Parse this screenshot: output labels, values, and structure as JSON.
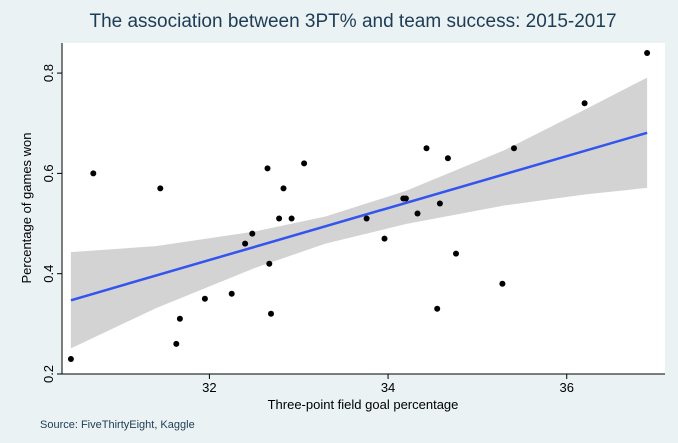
{
  "chart_data": {
    "type": "scatter",
    "title": "The association between 3PT% and team success: 2015-2017",
    "xlabel": "Three-point field goal percentage",
    "ylabel": "Percentage of games won",
    "source": "Source: FiveThirtyEight, Kaggle",
    "xlim": [
      30.35,
      37.1
    ],
    "ylim": [
      0.2,
      0.86
    ],
    "x_ticks": [
      32,
      34,
      36
    ],
    "y_ticks": [
      0.2,
      0.4,
      0.6,
      0.8
    ],
    "x_tick_labels": [
      "32",
      "34",
      "36"
    ],
    "y_tick_labels": [
      "0.2",
      "0.4",
      "0.6",
      "0.8"
    ],
    "points": [
      {
        "x": 30.45,
        "y": 0.23
      },
      {
        "x": 30.7,
        "y": 0.6
      },
      {
        "x": 31.45,
        "y": 0.57
      },
      {
        "x": 31.63,
        "y": 0.26
      },
      {
        "x": 31.67,
        "y": 0.31
      },
      {
        "x": 31.95,
        "y": 0.35
      },
      {
        "x": 32.25,
        "y": 0.36
      },
      {
        "x": 32.4,
        "y": 0.46
      },
      {
        "x": 32.48,
        "y": 0.48
      },
      {
        "x": 32.65,
        "y": 0.61
      },
      {
        "x": 32.67,
        "y": 0.42
      },
      {
        "x": 32.69,
        "y": 0.32
      },
      {
        "x": 32.78,
        "y": 0.51
      },
      {
        "x": 32.83,
        "y": 0.57
      },
      {
        "x": 32.92,
        "y": 0.51
      },
      {
        "x": 33.06,
        "y": 0.62
      },
      {
        "x": 33.76,
        "y": 0.51
      },
      {
        "x": 33.96,
        "y": 0.47
      },
      {
        "x": 34.17,
        "y": 0.55
      },
      {
        "x": 34.2,
        "y": 0.55
      },
      {
        "x": 34.33,
        "y": 0.52
      },
      {
        "x": 34.43,
        "y": 0.65
      },
      {
        "x": 34.55,
        "y": 0.33
      },
      {
        "x": 34.58,
        "y": 0.54
      },
      {
        "x": 34.67,
        "y": 0.63
      },
      {
        "x": 34.76,
        "y": 0.44
      },
      {
        "x": 35.28,
        "y": 0.38
      },
      {
        "x": 35.41,
        "y": 0.65
      },
      {
        "x": 36.2,
        "y": 0.74
      },
      {
        "x": 36.9,
        "y": 0.84
      }
    ],
    "fit_line": {
      "x": [
        30.45,
        36.9
      ],
      "y": [
        0.347,
        0.681
      ]
    },
    "confidence_band": {
      "x": [
        30.45,
        31.4,
        32.5,
        33.3,
        34.2,
        35.3,
        36.2,
        36.9
      ],
      "lower": [
        0.251,
        0.331,
        0.411,
        0.46,
        0.499,
        0.536,
        0.558,
        0.571
      ],
      "upper": [
        0.443,
        0.455,
        0.484,
        0.514,
        0.565,
        0.646,
        0.727,
        0.791
      ]
    },
    "grid": false,
    "colors": {
      "background": "#eaf2f3",
      "plot_background": "#ffffff",
      "points": "#000000",
      "fit_line": "#3355ee",
      "band": "#d3d3d3",
      "title": "#1e3c55"
    }
  }
}
